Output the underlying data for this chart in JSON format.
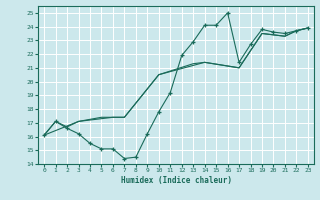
{
  "bg_color": "#cce8ec",
  "grid_color": "#ffffff",
  "line_color": "#1a6b5a",
  "xlim": [
    -0.5,
    23.5
  ],
  "ylim": [
    14,
    25.5
  ],
  "xticks": [
    0,
    1,
    2,
    3,
    4,
    5,
    6,
    7,
    8,
    9,
    10,
    11,
    12,
    13,
    14,
    15,
    16,
    17,
    18,
    19,
    20,
    21,
    22,
    23
  ],
  "yticks": [
    14,
    15,
    16,
    17,
    18,
    19,
    20,
    21,
    22,
    23,
    24,
    25
  ],
  "xlabel": "Humidex (Indice chaleur)",
  "curve1_x": [
    0,
    1,
    2,
    3,
    4,
    5,
    6,
    7,
    8,
    9,
    10,
    11,
    12,
    13,
    14,
    15,
    16,
    17,
    18,
    19,
    20,
    21,
    22,
    23
  ],
  "curve1_y": [
    16.1,
    17.1,
    16.6,
    16.2,
    15.5,
    15.1,
    15.1,
    14.4,
    14.5,
    16.2,
    17.8,
    19.2,
    21.9,
    22.9,
    24.1,
    24.1,
    25.0,
    21.4,
    22.7,
    23.8,
    23.6,
    23.5,
    23.7,
    23.9
  ],
  "curve2_x": [
    0,
    1,
    2,
    3,
    5,
    6,
    7,
    10,
    13,
    14,
    17,
    19,
    20,
    21,
    22,
    23
  ],
  "curve2_y": [
    16.1,
    17.1,
    16.7,
    17.1,
    17.4,
    17.4,
    17.4,
    20.5,
    21.3,
    21.4,
    21.0,
    23.5,
    23.4,
    23.3,
    23.7,
    23.9
  ],
  "curve3_x": [
    0,
    3,
    6,
    7,
    10,
    14,
    17,
    19,
    20,
    21,
    22,
    23
  ],
  "curve3_y": [
    16.1,
    17.1,
    17.4,
    17.4,
    20.5,
    21.4,
    21.0,
    23.5,
    23.4,
    23.3,
    23.7,
    23.9
  ]
}
